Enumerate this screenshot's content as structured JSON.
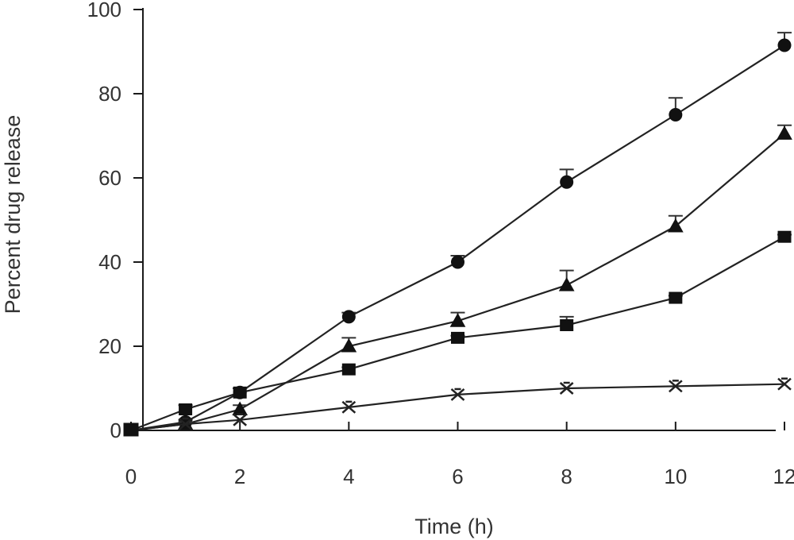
{
  "chart_data": {
    "type": "line",
    "title": "",
    "xlabel": "Time (h)",
    "ylabel": "Percent drug release",
    "xlim": [
      0,
      12
    ],
    "ylim": [
      0,
      100
    ],
    "x_ticks": [
      0,
      2,
      4,
      6,
      8,
      10,
      12
    ],
    "y_ticks": [
      0,
      20,
      40,
      60,
      80,
      100
    ],
    "grid": false,
    "legend": "none",
    "series": [
      {
        "marker": "circle",
        "x": [
          0,
          1,
          2,
          4,
          6,
          8,
          10,
          12
        ],
        "y": [
          0,
          2,
          9,
          27,
          40,
          59,
          75,
          91.5
        ],
        "error": [
          0,
          0.5,
          1,
          1,
          1.5,
          3,
          4,
          3
        ]
      },
      {
        "marker": "triangle",
        "x": [
          0,
          1,
          2,
          4,
          6,
          8,
          10,
          12
        ],
        "y": [
          0,
          1.5,
          5,
          20,
          26,
          34.5,
          48.5,
          70.5
        ],
        "error": [
          0,
          0.5,
          1,
          2,
          2,
          3.5,
          2.5,
          2
        ]
      },
      {
        "marker": "square",
        "x": [
          0,
          1,
          2,
          4,
          6,
          8,
          10,
          12
        ],
        "y": [
          0,
          5,
          9,
          14.5,
          22,
          25,
          31.5,
          46
        ],
        "error": [
          0,
          1,
          1,
          0.5,
          0.5,
          2,
          0.5,
          0.5
        ]
      },
      {
        "marker": "x",
        "x": [
          0,
          1,
          2,
          4,
          6,
          8,
          10,
          12
        ],
        "y": [
          0,
          1.5,
          2.5,
          5.5,
          8.5,
          10,
          10.5,
          11
        ],
        "error": [
          0,
          0,
          0,
          0,
          0,
          0,
          0,
          0
        ]
      }
    ]
  }
}
